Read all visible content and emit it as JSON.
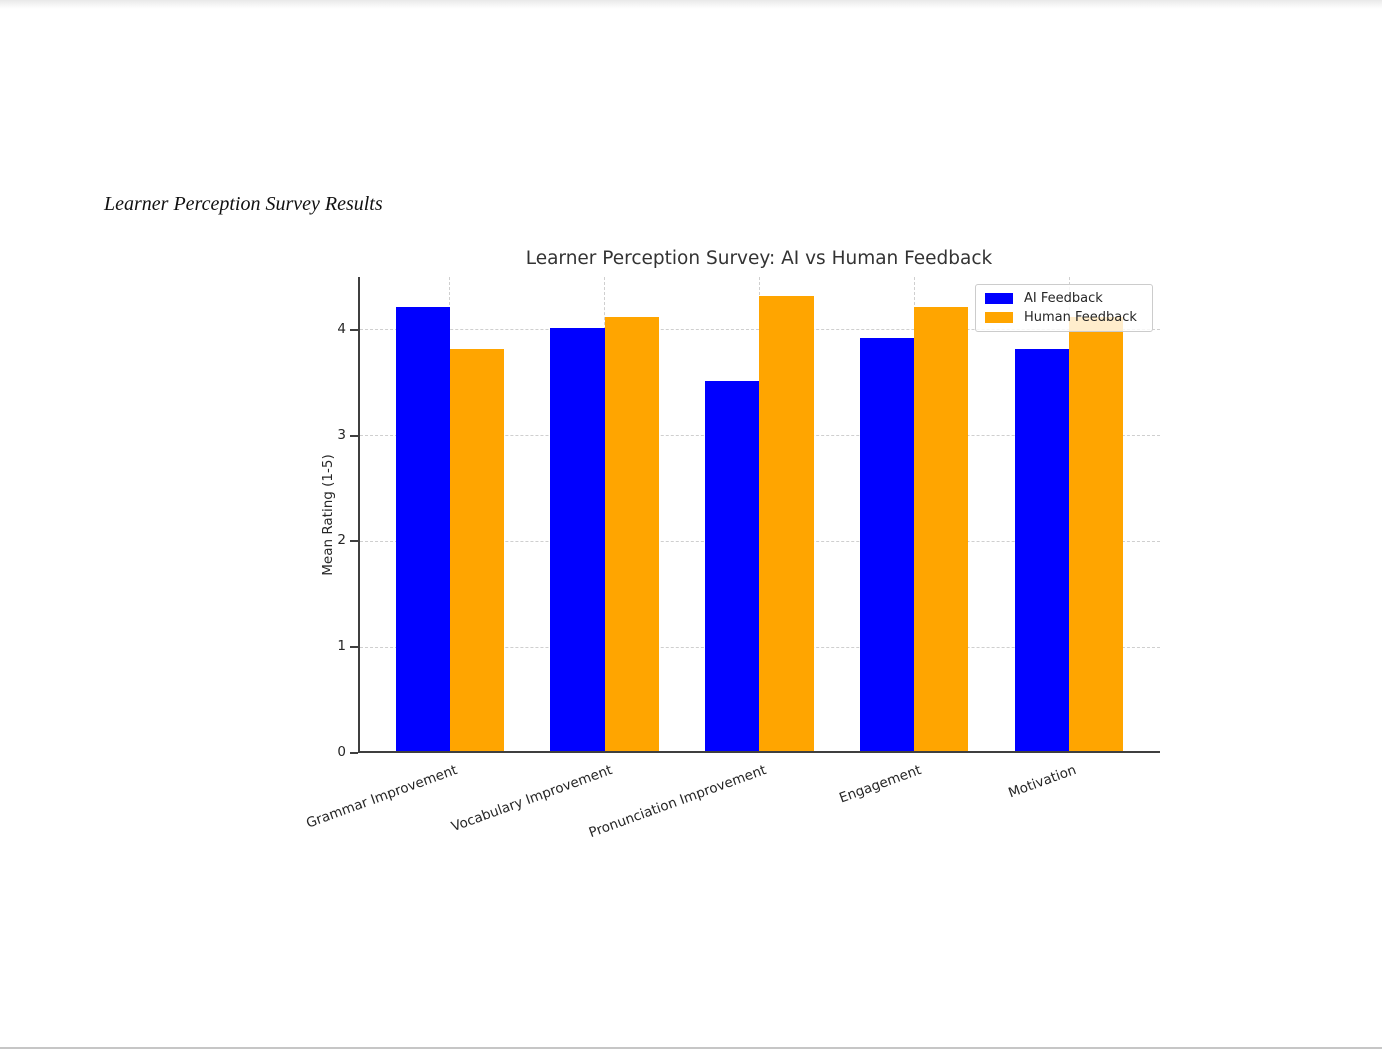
{
  "page": {
    "document_heading": "Learner Perception Survey Results"
  },
  "chart_data": {
    "type": "bar",
    "title": "Learner Perception Survey: AI vs Human Feedback",
    "categories": [
      "Grammar Improvement",
      "Vocabulary Improvement",
      "Pronunciation Improvement",
      "Engagement",
      "Motivation"
    ],
    "series": [
      {
        "name": "AI Feedback",
        "color": "#0000ff",
        "values": [
          4.2,
          4.0,
          3.5,
          3.9,
          3.8
        ]
      },
      {
        "name": "Human Feedback",
        "color": "#ffa500",
        "values": [
          3.8,
          4.1,
          4.3,
          4.2,
          4.1
        ]
      }
    ],
    "xlabel": "",
    "ylabel": "Mean Rating (1-5)",
    "ylim": [
      0,
      4.5
    ],
    "yticks": [
      0,
      1,
      2,
      3,
      4
    ],
    "grid": true,
    "grid_style": "dashed",
    "legend_position": "upper right",
    "xtick_rotation_deg": 20,
    "axis_color": "#3f3f3f",
    "gridline_color": "#cfcfcf"
  }
}
